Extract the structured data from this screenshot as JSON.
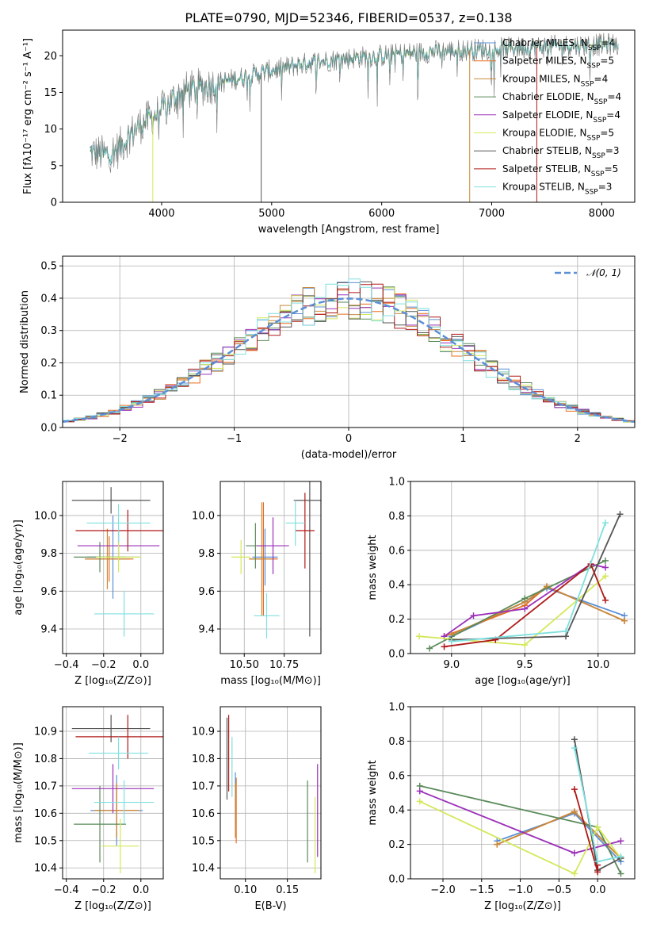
{
  "figure": {
    "title": "PLATE=0790, MJD=52346, FIBERID=0537, z=0.138"
  },
  "colors": {
    "Chabrier MILES": "#5b8fd6",
    "Salpeter MILES": "#e86f1f",
    "Kroupa MILES": "#c8893c",
    "Chabrier ELODIE": "#5a8a5a",
    "Salpeter ELODIE": "#9b30b8",
    "Kroupa ELODIE": "#d4e85a",
    "Chabrier STELIB": "#555555",
    "Salpeter STELIB": "#b01818",
    "Kroupa STELIB": "#7fe0e0",
    "normal_curve": "#5b8fd6",
    "grid": "#b0b0b0"
  },
  "legend_models": [
    {
      "label": "Chabrier MILES, N",
      "sub": "SSP",
      "tail": "=4"
    },
    {
      "label": "Salpeter MILES, N",
      "sub": "SSP",
      "tail": "=5"
    },
    {
      "label": "Kroupa MILES, N",
      "sub": "SSP",
      "tail": "=4"
    },
    {
      "label": "Chabrier ELODIE, N",
      "sub": "SSP",
      "tail": "=4"
    },
    {
      "label": "Salpeter ELODIE, N",
      "sub": "SSP",
      "tail": "=4"
    },
    {
      "label": "Kroupa ELODIE, N",
      "sub": "SSP",
      "tail": "=5"
    },
    {
      "label": "Chabrier STELIB, N",
      "sub": "SSP",
      "tail": "=3"
    },
    {
      "label": "Salpeter STELIB, N",
      "sub": "SSP",
      "tail": "=5"
    },
    {
      "label": "Kroupa STELIB, N",
      "sub": "SSP",
      "tail": "=3"
    }
  ],
  "chart_data": [
    {
      "id": "spectrum",
      "type": "line",
      "xlabel": "wavelength [Angstrom, rest frame]",
      "ylabel": "Flux [fλ10⁻¹⁷ erg cm⁻² s⁻¹ A⁻¹]",
      "xlim": [
        3100,
        8300
      ],
      "ylim": [
        0,
        23.5
      ],
      "xticks": [
        4000,
        5000,
        6000,
        7000,
        8000
      ],
      "yticks": [
        0,
        5,
        10,
        15,
        20
      ],
      "grid": false,
      "legend_position": "upper right",
      "continuum": {
        "x": [
          3350,
          3500,
          3600,
          3700,
          3800,
          3900,
          4000,
          4100,
          4200,
          4400,
          4600,
          4800,
          5000,
          5200,
          5400,
          5600,
          5800,
          6000,
          6200,
          6500,
          6800,
          7100,
          7400,
          7700,
          8000,
          8150
        ],
        "y": [
          6.8,
          6.5,
          7.2,
          9.0,
          10.5,
          11.5,
          12.5,
          14.0,
          15.2,
          15.8,
          16.6,
          17.3,
          18.0,
          18.6,
          19.2,
          19.5,
          19.8,
          20.0,
          20.3,
          20.6,
          20.8,
          21.0,
          21.2,
          21.4,
          21.5,
          21.6
        ]
      },
      "spikes": [
        {
          "x": 4905,
          "y": 0
        },
        {
          "x": 6800,
          "y": 0
        },
        {
          "x": 7410,
          "y": 0
        },
        {
          "x": 3920,
          "y": 0
        }
      ]
    },
    {
      "id": "residuals",
      "type": "histogram",
      "xlabel": "(data-model)/error",
      "ylabel": "Normed distribution",
      "xlim": [
        -2.5,
        2.5
      ],
      "ylim": [
        0,
        0.53
      ],
      "xticks": [
        -2,
        -1,
        0,
        1,
        2
      ],
      "yticks": [
        0.0,
        0.1,
        0.2,
        0.3,
        0.4,
        0.5
      ],
      "grid": true,
      "legend": [
        {
          "name": "𝒩(0, 1)",
          "style": "dashed"
        }
      ],
      "legend_position": "upper right",
      "bin_width": 0.1
    },
    {
      "id": "age_vs_Z",
      "type": "errorbar",
      "xlabel": "Z [log₁₀(Z/Z⊙)]",
      "ylabel": "age [log₁₀(age/yr)]",
      "xlim": [
        -0.42,
        0.12
      ],
      "ylim": [
        9.27,
        10.18
      ],
      "xticks": [
        -0.4,
        -0.2,
        0.0
      ],
      "yticks": [
        9.4,
        9.6,
        9.8,
        10.0
      ],
      "grid": true,
      "points": [
        {
          "model": "Chabrier MILES",
          "x": -0.15,
          "xerr": 0.14,
          "y": 9.78,
          "yerr": 0.22
        },
        {
          "model": "Salpeter MILES",
          "x": -0.17,
          "xerr": 0.13,
          "y": 9.77,
          "yerr": 0.12
        },
        {
          "model": "Kroupa MILES",
          "x": -0.18,
          "xerr": 0.12,
          "y": 9.77,
          "yerr": 0.16
        },
        {
          "model": "Chabrier ELODIE",
          "x": -0.22,
          "xerr": 0.14,
          "y": 9.78,
          "yerr": 0.08
        },
        {
          "model": "Salpeter ELODIE",
          "x": -0.12,
          "xerr": 0.22,
          "y": 9.84,
          "yerr": 0.08
        },
        {
          "model": "Kroupa ELODIE",
          "x": -0.12,
          "xerr": 0.12,
          "y": 9.78,
          "yerr": 0.08
        },
        {
          "model": "Chabrier STELIB",
          "x": -0.16,
          "xerr": 0.21,
          "y": 10.08,
          "yerr": 0.07
        },
        {
          "model": "Salpeter STELIB",
          "x": -0.07,
          "xerr": 0.28,
          "y": 9.92,
          "yerr": 0.11
        },
        {
          "model": "Kroupa STELIB",
          "x": -0.12,
          "xerr": 0.17,
          "y": 9.96,
          "yerr": 0.1
        },
        {
          "model": "Kroupa STELIB",
          "x": -0.09,
          "xerr": 0.16,
          "y": 9.48,
          "yerr": 0.12
        }
      ]
    },
    {
      "id": "age_vs_mass",
      "type": "errorbar",
      "xlabel": "mass [log₁₀(M/M⊙)]",
      "ylabel": "",
      "xlim": [
        10.35,
        10.98
      ],
      "ylim": [
        9.27,
        10.18
      ],
      "xticks": [
        10.5,
        10.75
      ],
      "xtick_labels": [
        "10.50",
        "10.75"
      ],
      "yticks": [
        9.4,
        9.6,
        9.8,
        10.0
      ],
      "grid": true,
      "points": [
        {
          "model": "Chabrier MILES",
          "x": 10.63,
          "xerr": 0.08,
          "y": 9.78,
          "yerr": 0.15
        },
        {
          "model": "Salpeter MILES",
          "x": 10.62,
          "xerr": 0.09,
          "y": 9.77,
          "yerr": 0.3
        },
        {
          "model": "Kroupa MILES",
          "x": 10.61,
          "xerr": 0.08,
          "y": 9.77,
          "yerr": 0.3
        },
        {
          "model": "Chabrier ELODIE",
          "x": 10.57,
          "xerr": 0.06,
          "y": 9.84,
          "yerr": 0.12
        },
        {
          "model": "Salpeter ELODIE",
          "x": 10.68,
          "xerr": 0.1,
          "y": 9.84,
          "yerr": 0.15
        },
        {
          "model": "Kroupa ELODIE",
          "x": 10.48,
          "xerr": 0.06,
          "y": 9.78,
          "yerr": 0.09
        },
        {
          "model": "Chabrier STELIB",
          "x": 10.91,
          "xerr": 0.1,
          "y": 10.08,
          "yerr": 0.72
        },
        {
          "model": "Salpeter STELIB",
          "x": 10.88,
          "xerr": 0.06,
          "y": 9.92,
          "yerr": 0.2
        },
        {
          "model": "Kroupa STELIB",
          "x": 10.82,
          "xerr": 0.06,
          "y": 9.96,
          "yerr": 0.12
        },
        {
          "model": "Kroupa STELIB",
          "x": 10.64,
          "xerr": 0.08,
          "y": 9.47,
          "yerr": 0.12
        }
      ]
    },
    {
      "id": "weight_vs_age",
      "type": "line",
      "xlabel": "age [log₁₀(age/yr)]",
      "ylabel": "mass weight",
      "xlim": [
        8.72,
        10.25
      ],
      "ylim": [
        0,
        1
      ],
      "xticks": [
        9.0,
        9.5,
        10.0
      ],
      "yticks": [
        0.0,
        0.2,
        0.4,
        0.6,
        0.8,
        1.0
      ],
      "grid": true,
      "series": [
        {
          "model": "Chabrier MILES",
          "x": [
            9.0,
            9.5,
            9.65,
            10.18
          ],
          "y": [
            0.1,
            0.3,
            0.38,
            0.22
          ]
        },
        {
          "model": "Salpeter MILES",
          "x": [
            8.95,
            9.5,
            9.65,
            10.18
          ],
          "y": [
            0.1,
            0.28,
            0.39,
            0.19
          ]
        },
        {
          "model": "Kroupa MILES",
          "x": [
            9.0,
            9.5,
            9.65,
            10.18
          ],
          "y": [
            0.11,
            0.3,
            0.39,
            0.19
          ]
        },
        {
          "model": "Chabrier ELODIE",
          "x": [
            8.85,
            9.5,
            10.05
          ],
          "y": [
            0.03,
            0.32,
            0.54
          ]
        },
        {
          "model": "Salpeter ELODIE",
          "x": [
            8.95,
            9.15,
            9.5,
            9.95,
            10.05
          ],
          "y": [
            0.1,
            0.22,
            0.26,
            0.52,
            0.5
          ]
        },
        {
          "model": "Kroupa ELODIE",
          "x": [
            8.78,
            9.5,
            10.05
          ],
          "y": [
            0.1,
            0.05,
            0.45
          ]
        },
        {
          "model": "Chabrier STELIB",
          "x": [
            9.0,
            9.78,
            10.15
          ],
          "y": [
            0.08,
            0.1,
            0.81
          ]
        },
        {
          "model": "Salpeter STELIB",
          "x": [
            8.95,
            9.3,
            9.95,
            10.05
          ],
          "y": [
            0.04,
            0.08,
            0.52,
            0.31
          ]
        },
        {
          "model": "Kroupa STELIB",
          "x": [
            9.0,
            9.78,
            10.05
          ],
          "y": [
            0.07,
            0.13,
            0.76
          ]
        }
      ]
    },
    {
      "id": "mass_vs_Z",
      "type": "errorbar",
      "xlabel": "Z [log₁₀(Z/Z⊙)]",
      "ylabel": "mass [log₁₀(M/M⊙)]",
      "xlim": [
        -0.42,
        0.12
      ],
      "ylim": [
        10.36,
        10.99
      ],
      "xticks": [
        -0.4,
        -0.2,
        0.0
      ],
      "yticks": [
        10.4,
        10.5,
        10.6,
        10.7,
        10.8,
        10.9
      ],
      "grid": true,
      "points": [
        {
          "model": "Chabrier MILES",
          "x": -0.13,
          "xerr": 0.14,
          "y": 10.61,
          "yerr": 0.13
        },
        {
          "model": "Salpeter MILES",
          "x": -0.13,
          "xerr": 0.12,
          "y": 10.61,
          "yerr": 0.1
        },
        {
          "model": "Kroupa MILES",
          "x": -0.13,
          "xerr": 0.12,
          "y": 10.61,
          "yerr": 0.1
        },
        {
          "model": "Chabrier ELODIE",
          "x": -0.22,
          "xerr": 0.14,
          "y": 10.56,
          "yerr": 0.14
        },
        {
          "model": "Salpeter ELODIE",
          "x": -0.15,
          "xerr": 0.22,
          "y": 10.69,
          "yerr": 0.09
        },
        {
          "model": "Kroupa ELODIE",
          "x": -0.11,
          "xerr": 0.1,
          "y": 10.48,
          "yerr": 0.1
        },
        {
          "model": "Chabrier STELIB",
          "x": -0.16,
          "xerr": 0.21,
          "y": 10.91,
          "yerr": 0.05
        },
        {
          "model": "Salpeter STELIB",
          "x": -0.07,
          "xerr": 0.28,
          "y": 10.88,
          "yerr": 0.08
        },
        {
          "model": "Kroupa STELIB",
          "x": -0.12,
          "xerr": 0.16,
          "y": 10.82,
          "yerr": 0.06
        },
        {
          "model": "Kroupa STELIB",
          "x": -0.09,
          "xerr": 0.16,
          "y": 10.64,
          "yerr": 0.08
        }
      ]
    },
    {
      "id": "mass_vs_EBV",
      "type": "errorbar",
      "xlabel": "E(B-V)",
      "ylabel": "",
      "xlim": [
        0.07,
        0.19
      ],
      "ylim": [
        10.36,
        10.99
      ],
      "xticks": [
        0.1,
        0.15
      ],
      "xtick_labels": [
        "0.10",
        "0.15"
      ],
      "yticks": [
        10.4,
        10.5,
        10.6,
        10.7,
        10.8,
        10.9
      ],
      "grid": true,
      "points": [
        {
          "model": "Chabrier STELIB",
          "x": 0.078,
          "y": 10.8,
          "yerr": 0.15
        },
        {
          "model": "Salpeter STELIB",
          "x": 0.08,
          "y": 10.82,
          "yerr": 0.14
        },
        {
          "model": "Kroupa STELIB",
          "x": 0.084,
          "y": 10.77,
          "yerr": 0.11
        },
        {
          "model": "Salpeter MILES",
          "x": 0.089,
          "y": 10.61,
          "yerr": 0.12
        },
        {
          "model": "Chabrier MILES",
          "x": 0.088,
          "y": 10.65,
          "yerr": 0.1
        },
        {
          "model": "Kroupa MILES",
          "x": 0.088,
          "y": 10.61,
          "yerr": 0.1
        },
        {
          "model": "Chabrier ELODIE",
          "x": 0.174,
          "y": 10.57,
          "yerr": 0.15
        },
        {
          "model": "Kroupa ELODIE",
          "x": 0.183,
          "y": 10.52,
          "yerr": 0.14
        },
        {
          "model": "Salpeter ELODIE",
          "x": 0.186,
          "y": 10.61,
          "yerr": 0.17
        }
      ]
    },
    {
      "id": "weight_vs_Z",
      "type": "line",
      "xlabel": "Z [log₁₀(Z/Z⊙)]",
      "ylabel": "mass weight",
      "xlim": [
        -2.42,
        0.48
      ],
      "ylim": [
        0,
        1
      ],
      "xticks": [
        -2.0,
        -1.5,
        -1.0,
        -0.5,
        0.0
      ],
      "yticks": [
        0.0,
        0.2,
        0.4,
        0.6,
        0.8,
        1.0
      ],
      "grid": true,
      "series": [
        {
          "model": "Chabrier MILES",
          "x": [
            -1.3,
            -0.3,
            0.3
          ],
          "y": [
            0.22,
            0.38,
            0.1
          ]
        },
        {
          "model": "Salpeter MILES",
          "x": [
            -1.3,
            -0.3,
            0.3
          ],
          "y": [
            0.2,
            0.39,
            0.12
          ]
        },
        {
          "model": "Kroupa MILES",
          "x": [
            -1.3,
            -0.3,
            0.3
          ],
          "y": [
            0.2,
            0.39,
            0.12
          ]
        },
        {
          "model": "Chabrier ELODIE",
          "x": [
            -2.3,
            0.0,
            0.3
          ],
          "y": [
            0.54,
            0.3,
            0.03
          ]
        },
        {
          "model": "Salpeter ELODIE",
          "x": [
            -2.3,
            -0.3,
            0.3
          ],
          "y": [
            0.51,
            0.15,
            0.22
          ]
        },
        {
          "model": "Kroupa ELODIE",
          "x": [
            -2.3,
            -0.3,
            0.0,
            0.3
          ],
          "y": [
            0.45,
            0.03,
            0.3,
            0.12
          ]
        },
        {
          "model": "Chabrier STELIB",
          "x": [
            -0.3,
            0.0,
            0.3
          ],
          "y": [
            0.81,
            0.05,
            0.12
          ]
        },
        {
          "model": "Salpeter STELIB",
          "x": [
            -0.3,
            0.0,
            0.0
          ],
          "y": [
            0.52,
            0.04,
            0.08
          ]
        },
        {
          "model": "Kroupa STELIB",
          "x": [
            -0.3,
            0.0,
            0.3
          ],
          "y": [
            0.76,
            0.1,
            0.13
          ]
        }
      ]
    }
  ]
}
